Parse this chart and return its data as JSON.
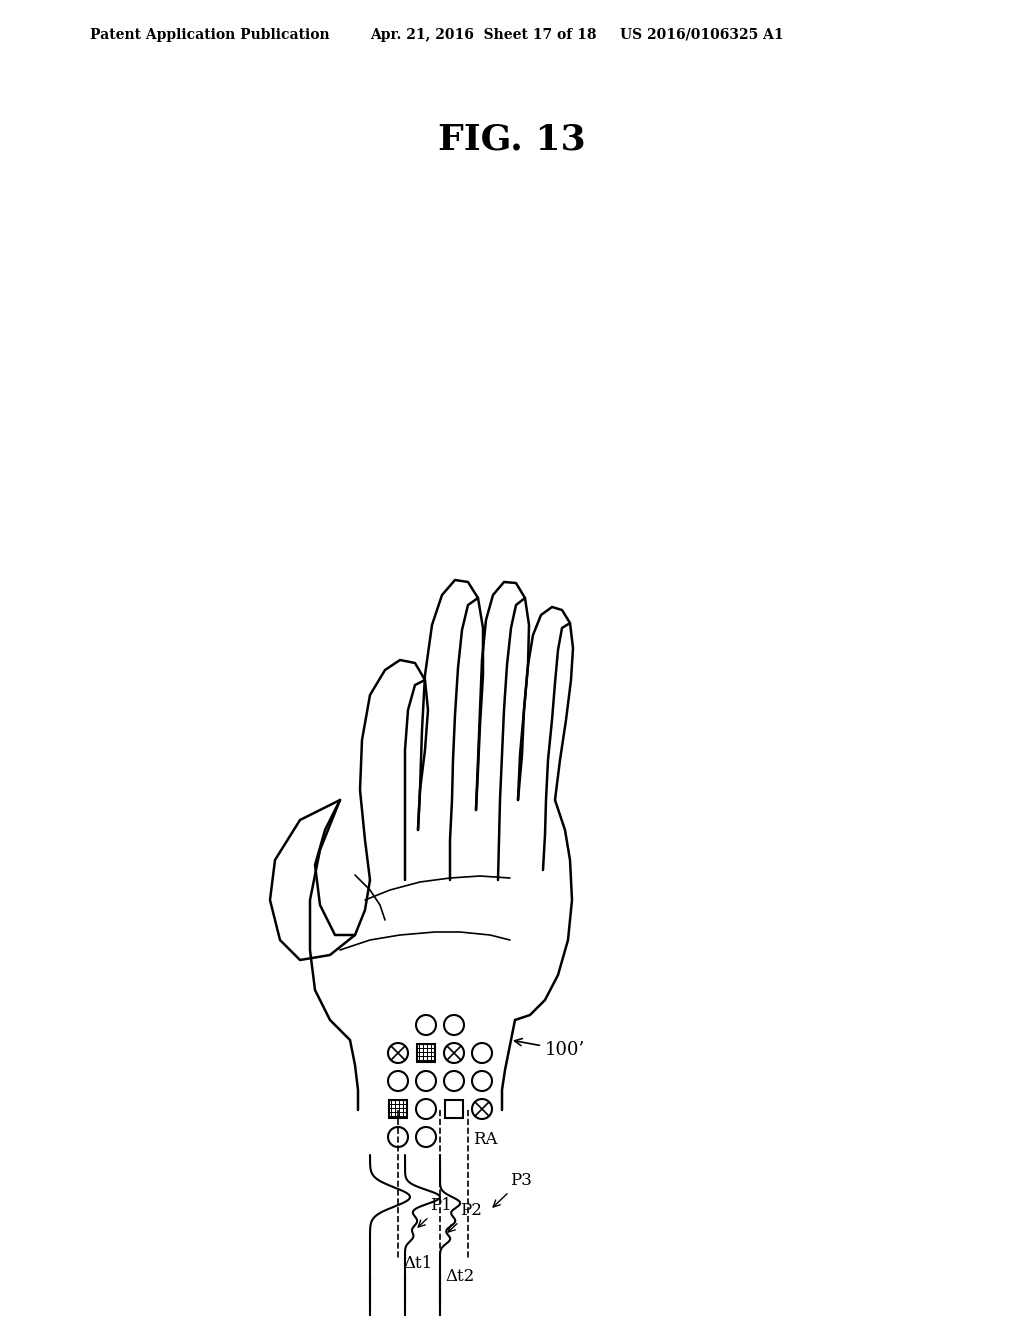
{
  "bg_color": "#ffffff",
  "header_left": "Patent Application Publication",
  "header_mid": "Apr. 21, 2016  Sheet 17 of 18",
  "header_right": "US 2016/0106325 A1",
  "fig_title": "FIG. 13",
  "label_100prime": "100’",
  "label_RA": "RA",
  "label_P1": "P1",
  "label_P2": "P2",
  "label_P3": "P3",
  "label_dt1": "Δt1",
  "label_dt2": "Δt2"
}
